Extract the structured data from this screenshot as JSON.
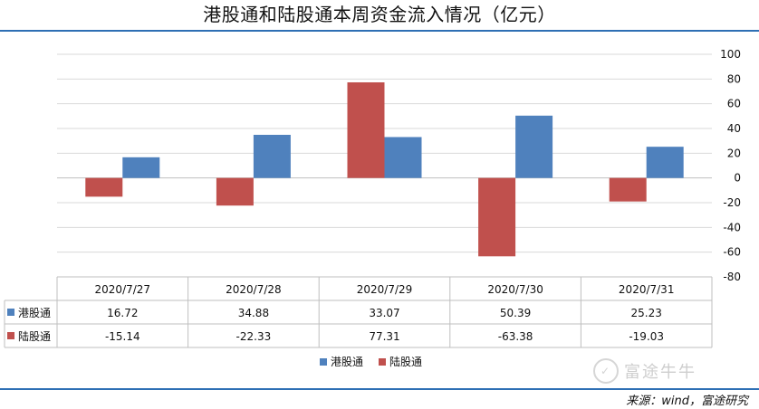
{
  "title": "港股通和陆股通本周资金流入情况（亿元）",
  "source": "来源：wind，富途研究",
  "watermark": "富途牛牛",
  "colors": {
    "hk_connect": "#4f81bd",
    "sh_sz_connect": "#c0504d",
    "rule": "#2e6fb4",
    "grid": "#d9d9d9"
  },
  "chart_data": {
    "type": "bar",
    "title": "港股通和陆股通本周资金流入情况（亿元）",
    "categories": [
      "2020/7/27",
      "2020/7/28",
      "2020/7/29",
      "2020/7/30",
      "2020/7/31"
    ],
    "series": [
      {
        "name": "港股通",
        "values": [
          16.72,
          34.88,
          33.07,
          50.39,
          25.23
        ],
        "color": "#4f81bd"
      },
      {
        "name": "陆股通",
        "values": [
          -15.14,
          -22.33,
          77.31,
          -63.38,
          -19.03
        ],
        "color": "#c0504d"
      }
    ],
    "series_draw_order": [
      "陆股通",
      "港股通"
    ],
    "table": {
      "rows": [
        {
          "name": "港股通",
          "values": [
            "16.72",
            "34.88",
            "33.07",
            "50.39",
            "25.23"
          ]
        },
        {
          "name": "陆股通",
          "values": [
            "-15.14",
            "-22.33",
            "77.31",
            "-63.38",
            "-19.03"
          ]
        }
      ]
    },
    "y_ticks": [
      100,
      80,
      60,
      40,
      20,
      0,
      -20,
      -40,
      -60,
      -80
    ],
    "ylim": [
      -80,
      100
    ],
    "y_axis_side": "right",
    "grid": true,
    "legend": "bottom-center",
    "xlabel": "",
    "ylabel": ""
  }
}
